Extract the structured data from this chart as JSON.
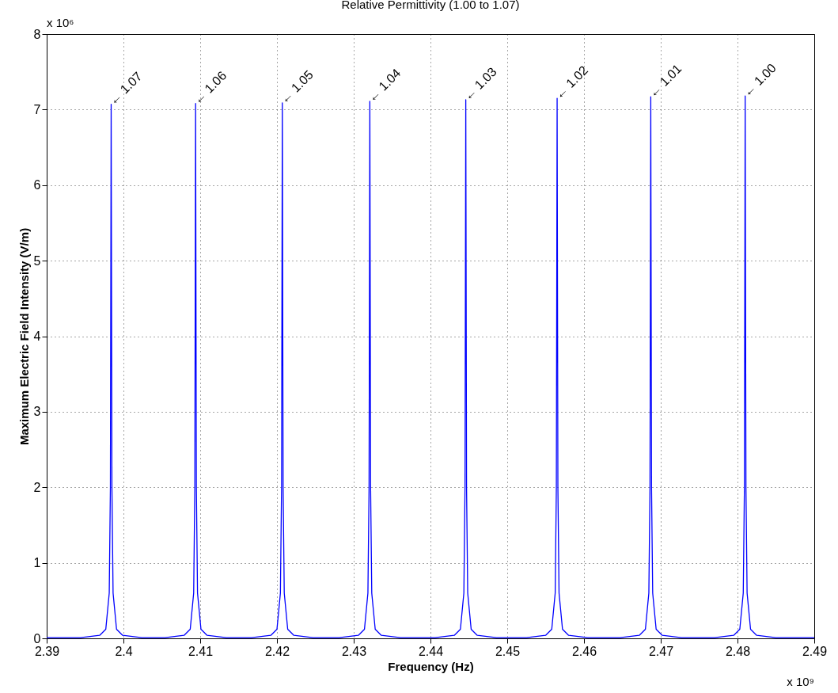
{
  "chart_data": {
    "type": "line",
    "title": "Relative Permittivity (1.00 to 1.07)",
    "xlabel": "Frequency (Hz)",
    "ylabel": "Maximum Electric Field Intensity (V/m)",
    "x": [
      2.39,
      2.3944,
      2.3969,
      2.3977,
      2.39815,
      2.3983,
      2.3984,
      2.3985,
      2.39865,
      2.3991,
      2.3999,
      2.4024,
      2.4054,
      2.4079,
      2.4087,
      2.40915,
      2.4093,
      2.4094,
      2.4095,
      2.40965,
      2.4101,
      2.4109,
      2.4134,
      2.4167,
      2.4192,
      2.42,
      2.42045,
      2.4206,
      2.4207,
      2.4208,
      2.42095,
      2.4214,
      2.4222,
      2.4247,
      2.4281,
      2.4306,
      2.4314,
      2.43185,
      2.432,
      2.4321,
      2.4322,
      2.43235,
      2.4328,
      2.4336,
      2.4361,
      2.4406,
      2.4431,
      2.4439,
      2.44435,
      2.4445,
      2.4446,
      2.4447,
      2.44485,
      2.4453,
      2.4461,
      2.4486,
      2.4525,
      2.455,
      2.4558,
      2.45625,
      2.4564,
      2.4565,
      2.4566,
      2.45675,
      2.4572,
      2.458,
      2.4605,
      2.4647,
      2.4672,
      2.468,
      2.46845,
      2.4686,
      2.4687,
      2.4688,
      2.46895,
      2.4694,
      2.4702,
      2.4727,
      2.477,
      2.4795,
      2.4803,
      2.48075,
      2.4809,
      2.481,
      2.4811,
      2.48125,
      2.4817,
      2.4825,
      2.485,
      2.49
    ],
    "series": [
      {
        "color": "#0000ff",
        "values": [
          0.01,
          0.01,
          0.04,
          0.12,
          0.6,
          2.0,
          7.07,
          2.0,
          0.6,
          0.12,
          0.04,
          0.01,
          0.01,
          0.04,
          0.12,
          0.6,
          2.0,
          7.08,
          2.0,
          0.6,
          0.12,
          0.04,
          0.01,
          0.01,
          0.04,
          0.12,
          0.6,
          2.0,
          7.09,
          2.0,
          0.6,
          0.12,
          0.04,
          0.01,
          0.01,
          0.04,
          0.12,
          0.6,
          2.0,
          7.11,
          2.0,
          0.6,
          0.12,
          0.04,
          0.01,
          0.01,
          0.04,
          0.12,
          0.6,
          2.0,
          7.13,
          2.0,
          0.6,
          0.12,
          0.04,
          0.01,
          0.01,
          0.04,
          0.12,
          0.6,
          2.0,
          7.15,
          2.0,
          0.6,
          0.12,
          0.04,
          0.01,
          0.01,
          0.04,
          0.12,
          0.6,
          2.0,
          7.17,
          2.0,
          0.6,
          0.12,
          0.04,
          0.01,
          0.01,
          0.04,
          0.12,
          0.6,
          2.0,
          7.18,
          2.0,
          0.6,
          0.12,
          0.04,
          0.01,
          0.01
        ]
      }
    ],
    "xlim": [
      2.39,
      2.49
    ],
    "xticks": [
      2.39,
      2.4,
      2.41,
      2.42,
      2.43,
      2.44,
      2.45,
      2.46,
      2.47,
      2.48,
      2.49
    ],
    "ylim": [
      0,
      8
    ],
    "yticks": [
      0,
      1,
      2,
      3,
      4,
      5,
      6,
      7,
      8
    ],
    "grid": true,
    "marker": "none",
    "line_style": "solid",
    "annotations": [
      {
        "text": "← 1.07",
        "x": 2.3984,
        "y": 7.07
      },
      {
        "text": "← 1.06",
        "x": 2.4094,
        "y": 7.08
      },
      {
        "text": "← 1.05",
        "x": 2.4207,
        "y": 7.09
      },
      {
        "text": "← 1.04",
        "x": 2.4321,
        "y": 7.11
      },
      {
        "text": "← 1.03",
        "x": 2.4446,
        "y": 7.13
      },
      {
        "text": "← 1.02",
        "x": 2.4565,
        "y": 7.15
      },
      {
        "text": "← 1.01",
        "x": 2.4687,
        "y": 7.17
      },
      {
        "text": "← 1.00",
        "x": 2.481,
        "y": 7.18
      },
      "x 10⁶",
      "x 10⁹"
    ]
  }
}
